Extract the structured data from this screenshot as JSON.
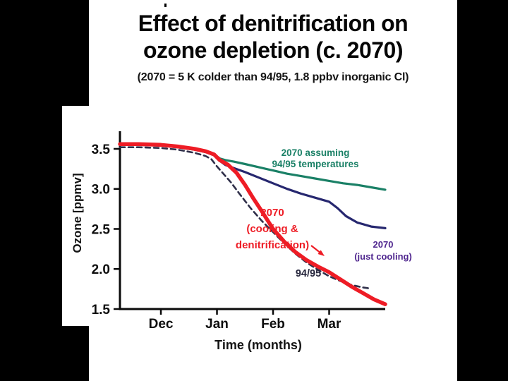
{
  "slide": {
    "title_line1": "Effect of denitrification on",
    "title_line2": "ozone depletion (c. 2070)",
    "subtitle": "(2070 = 5 K colder than 94/95, 1.8 ppbv inorganic Cl)"
  },
  "chart_data": {
    "type": "line",
    "title": "",
    "xlabel": "Time (months)",
    "ylabel": "Ozone [ppmv]",
    "xlim": [
      -0.73,
      4.0
    ],
    "ylim": [
      1.5,
      3.72
    ],
    "grid": false,
    "legend_position": "inline-annotations",
    "x_ticks": [
      {
        "label": "Dec",
        "x": 0
      },
      {
        "label": "Jan",
        "x": 1
      },
      {
        "label": "Feb",
        "x": 2
      },
      {
        "label": "Mar",
        "x": 3
      }
    ],
    "y_ticks": [
      3.5,
      3.0,
      2.5,
      2.0,
      1.5
    ],
    "series": [
      {
        "name": "2070 assuming 94/95 temperatures",
        "color": "#1a8066",
        "width": 3.2,
        "dash": null,
        "x": [
          -0.73,
          -0.4,
          0,
          0.3,
          0.6,
          0.8,
          0.95,
          1.05,
          1.15,
          1.3,
          1.5,
          1.75,
          2,
          2.25,
          2.5,
          2.75,
          3,
          3.25,
          3.5,
          3.75,
          4
        ],
        "y": [
          3.55,
          3.55,
          3.54,
          3.52,
          3.49,
          3.46,
          3.43,
          3.38,
          3.36,
          3.34,
          3.31,
          3.27,
          3.23,
          3.19,
          3.16,
          3.13,
          3.1,
          3.07,
          3.05,
          3.02,
          2.99
        ]
      },
      {
        "name": "2070 (just cooling)",
        "color": "#26276f",
        "width": 3.2,
        "dash": null,
        "x": [
          -0.73,
          -0.4,
          0,
          0.3,
          0.6,
          0.8,
          0.95,
          1.05,
          1.15,
          1.3,
          1.5,
          1.75,
          2,
          2.25,
          2.5,
          2.75,
          3,
          3.15,
          3.3,
          3.5,
          3.75,
          4
        ],
        "y": [
          3.55,
          3.55,
          3.54,
          3.52,
          3.49,
          3.46,
          3.42,
          3.35,
          3.3,
          3.26,
          3.21,
          3.14,
          3.07,
          3.0,
          2.94,
          2.89,
          2.84,
          2.76,
          2.66,
          2.58,
          2.53,
          2.51
        ]
      },
      {
        "name": "94/95",
        "color": "#30304a",
        "width": 2.6,
        "dash": "7,5",
        "x": [
          -0.73,
          -0.4,
          0,
          0.3,
          0.6,
          0.8,
          0.9,
          1,
          1.1,
          1.25,
          1.4,
          1.6,
          1.8,
          2,
          2.2,
          2.4,
          2.6,
          2.8,
          3,
          3.2,
          3.4,
          3.6,
          3.7
        ],
        "y": [
          3.52,
          3.52,
          3.51,
          3.49,
          3.45,
          3.41,
          3.37,
          3.28,
          3.2,
          3.08,
          2.94,
          2.76,
          2.6,
          2.46,
          2.32,
          2.19,
          2.08,
          1.99,
          1.91,
          1.85,
          1.8,
          1.77,
          1.76
        ]
      },
      {
        "name": "2070 (cooling & denitrification)",
        "color": "#ee1c25",
        "width": 5.5,
        "dash": null,
        "x": [
          -0.73,
          -0.4,
          0,
          0.3,
          0.6,
          0.8,
          0.95,
          1.05,
          1.2,
          1.35,
          1.5,
          1.65,
          1.8,
          2,
          2.2,
          2.4,
          2.6,
          2.8,
          3,
          3.2,
          3.4,
          3.6,
          3.8,
          4
        ],
        "y": [
          3.56,
          3.56,
          3.55,
          3.53,
          3.5,
          3.47,
          3.43,
          3.36,
          3.3,
          3.2,
          3.05,
          2.88,
          2.72,
          2.5,
          2.34,
          2.21,
          2.11,
          2.03,
          1.96,
          1.87,
          1.78,
          1.7,
          1.62,
          1.56
        ]
      }
    ],
    "annotations": {
      "assuming": {
        "lines": [
          "2070 assuming",
          "94/95 temperatures"
        ],
        "color": "#1a8066"
      },
      "denitrification": {
        "lines": [
          "2070",
          "(cooling &",
          "denitrification)"
        ],
        "color": "#ee1c25"
      },
      "just_cooling": {
        "lines": [
          "2070",
          "(just cooling)"
        ],
        "color": "#50278f"
      },
      "observed": {
        "lines": [
          "94/95"
        ],
        "color": "#26263c"
      }
    }
  }
}
